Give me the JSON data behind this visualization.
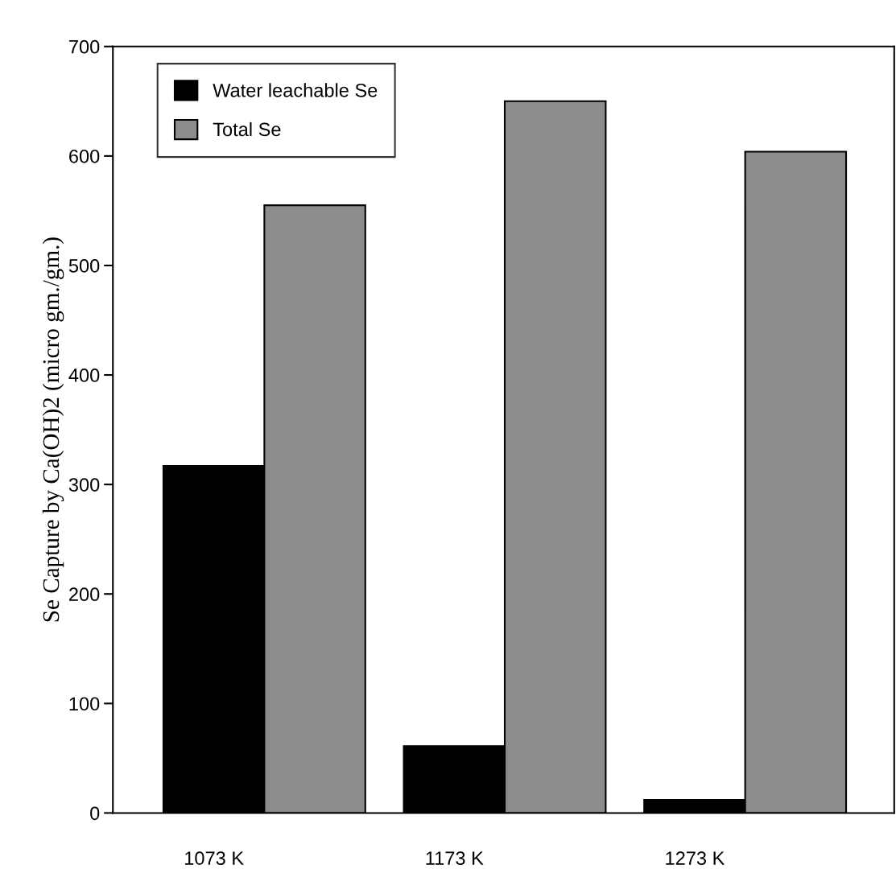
{
  "chart_data": {
    "type": "bar",
    "ylabel": "Se Capture by Ca(OH)2 (micro gm./gm.)",
    "categories": [
      "1073 K",
      "1173 K",
      "1273 K"
    ],
    "series": [
      {
        "name": "Water leachable Se",
        "color": "#000000",
        "values": [
          317,
          61,
          12
        ]
      },
      {
        "name": "Total Se",
        "color": "#8c8c8c",
        "values": [
          555,
          650,
          604
        ]
      }
    ],
    "ylim": [
      0,
      700
    ],
    "yticks": [
      0,
      100,
      200,
      300,
      400,
      500,
      600,
      700
    ],
    "grid": false,
    "legend": "top left"
  }
}
